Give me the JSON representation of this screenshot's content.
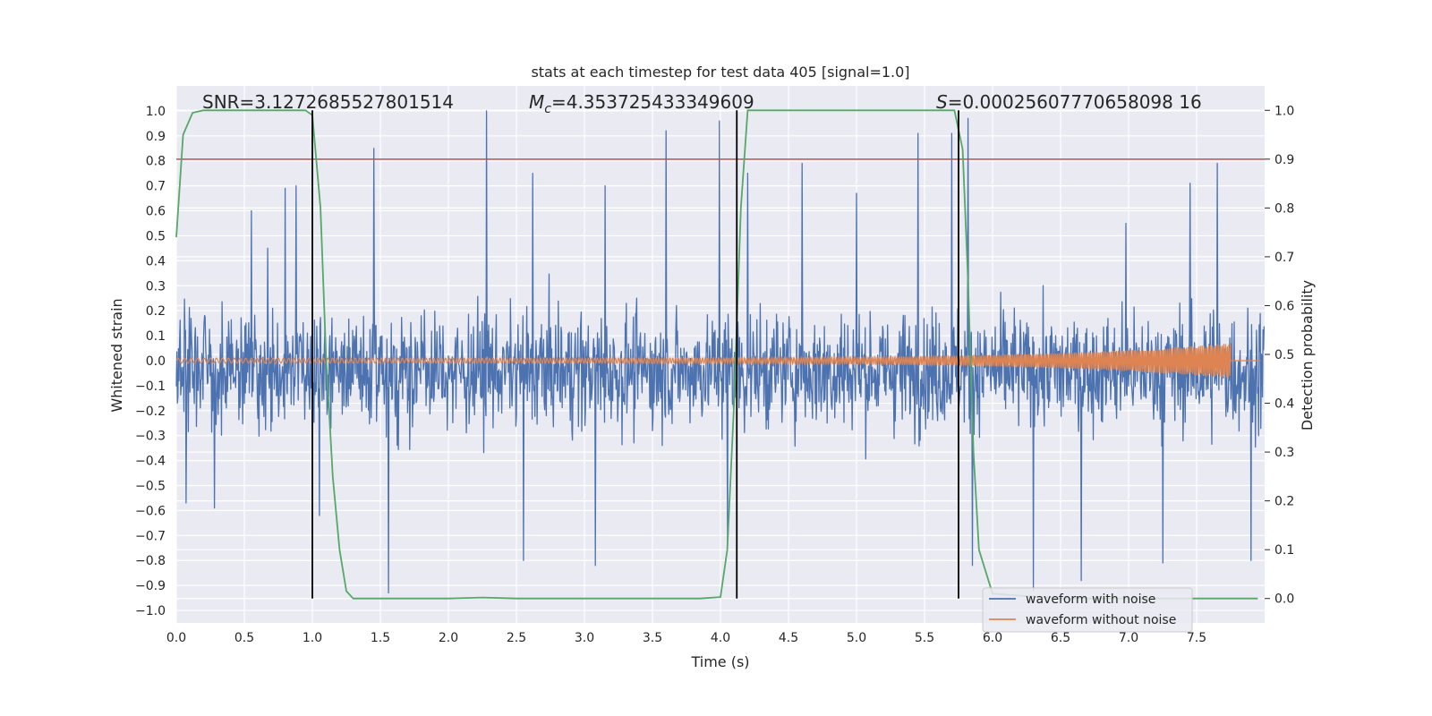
{
  "chart_data": {
    "type": "line",
    "title": "stats at each timestep for test data 405 [signal=1.0]",
    "xlabel": "Time (s)",
    "ylabel": "Whitened strain",
    "y2label": "Detection probability",
    "xlim": [
      0.0,
      8.0
    ],
    "ylim": [
      -1.05,
      1.1
    ],
    "y2lim": [
      -0.05,
      1.05
    ],
    "xticks": [
      "0.0",
      "0.5",
      "1.0",
      "1.5",
      "2.0",
      "2.5",
      "3.0",
      "3.5",
      "4.0",
      "4.5",
      "5.0",
      "5.5",
      "6.0",
      "6.5",
      "7.0",
      "7.5"
    ],
    "yticks": [
      "1.0",
      "0.9",
      "0.8",
      "0.7",
      "0.6",
      "0.5",
      "0.4",
      "0.3",
      "0.2",
      "0.1",
      "0.0",
      "−0.1",
      "−0.2",
      "−0.3",
      "−0.4",
      "−0.5",
      "−0.6",
      "−0.7",
      "−0.8",
      "−0.9",
      "−1.0"
    ],
    "y2ticks": [
      "1.0",
      "0.9",
      "0.8",
      "0.7",
      "0.6",
      "0.5",
      "0.4",
      "0.3",
      "0.2",
      "0.1",
      "0.0"
    ],
    "grid": true,
    "legend_position": "lower-right",
    "annotations": {
      "snr": "SNR=3.1272685527801514",
      "mc_symbol": "M",
      "mc_sub": "c",
      "mc_value": "=4.353725433349609",
      "s_symbol": "S",
      "s_value": "=0.00025607770658098 16"
    },
    "threshold_y2": 0.9,
    "vertical_lines_x": [
      1.0,
      4.12,
      5.75
    ],
    "series": [
      {
        "name": "waveform with noise",
        "color": "#4c72b0",
        "kind": "noise",
        "envelope_typical": [
          0.3,
          -0.38
        ],
        "peaks": [
          {
            "x": 0.07,
            "y": 0.41
          },
          {
            "x": 0.07,
            "y": -0.57
          },
          {
            "x": 0.28,
            "y": 0.56
          },
          {
            "x": 0.28,
            "y": -0.59
          },
          {
            "x": 0.55,
            "y": 0.6
          },
          {
            "x": 0.67,
            "y": 0.45
          },
          {
            "x": 0.8,
            "y": 0.69
          },
          {
            "x": 0.88,
            "y": 0.7
          },
          {
            "x": 1.05,
            "y": -0.62
          },
          {
            "x": 1.45,
            "y": 0.85
          },
          {
            "x": 1.56,
            "y": -0.93
          },
          {
            "x": 2.28,
            "y": 1.0
          },
          {
            "x": 2.55,
            "y": -0.8
          },
          {
            "x": 2.62,
            "y": 0.75
          },
          {
            "x": 3.08,
            "y": -0.82
          },
          {
            "x": 3.15,
            "y": 0.7
          },
          {
            "x": 3.6,
            "y": 0.92
          },
          {
            "x": 3.99,
            "y": 0.96
          },
          {
            "x": 4.05,
            "y": -0.73
          },
          {
            "x": 4.2,
            "y": 0.75
          },
          {
            "x": 4.6,
            "y": 0.79
          },
          {
            "x": 5.0,
            "y": 0.67
          },
          {
            "x": 5.45,
            "y": 0.91
          },
          {
            "x": 5.7,
            "y": 0.91
          },
          {
            "x": 5.82,
            "y": 0.97
          },
          {
            "x": 5.85,
            "y": -0.82
          },
          {
            "x": 6.3,
            "y": -0.92
          },
          {
            "x": 6.65,
            "y": -0.88
          },
          {
            "x": 6.98,
            "y": 0.55
          },
          {
            "x": 7.25,
            "y": -0.81
          },
          {
            "x": 7.45,
            "y": 0.71
          },
          {
            "x": 7.65,
            "y": 0.79
          },
          {
            "x": 7.9,
            "y": -0.8
          }
        ]
      },
      {
        "name": "waveform without noise",
        "color": "#dd8452",
        "kind": "chirp",
        "x_end": 7.75,
        "amplitude_start": 0.01,
        "amplitude_end": 0.07
      },
      {
        "name": "Detection probability",
        "color": "#55a868",
        "axis": "right",
        "x": [
          0.0,
          0.05,
          0.12,
          0.2,
          0.3,
          0.5,
          0.7,
          0.85,
          0.95,
          1.0,
          1.06,
          1.1,
          1.15,
          1.2,
          1.25,
          1.3,
          1.4,
          2.0,
          2.25,
          2.5,
          3.0,
          3.5,
          3.85,
          4.0,
          4.05,
          4.1,
          4.15,
          4.2,
          4.5,
          5.0,
          5.5,
          5.72,
          5.78,
          5.82,
          5.86,
          5.9,
          6.0,
          6.5,
          7.0,
          7.5,
          7.95
        ],
        "y": [
          0.74,
          0.95,
          0.995,
          1.0,
          1.0,
          1.0,
          1.0,
          1.0,
          1.0,
          0.99,
          0.8,
          0.5,
          0.25,
          0.1,
          0.015,
          0.0,
          0.0,
          0.0,
          0.002,
          0.0,
          0.0,
          0.0,
          0.0,
          0.003,
          0.1,
          0.4,
          0.8,
          1.0,
          1.0,
          1.0,
          1.0,
          1.0,
          0.92,
          0.65,
          0.3,
          0.1,
          0.01,
          0.0,
          0.0,
          0.0,
          0.0
        ]
      },
      {
        "name": "Threshold",
        "color": "#c44e52",
        "axis": "right"
      }
    ]
  }
}
